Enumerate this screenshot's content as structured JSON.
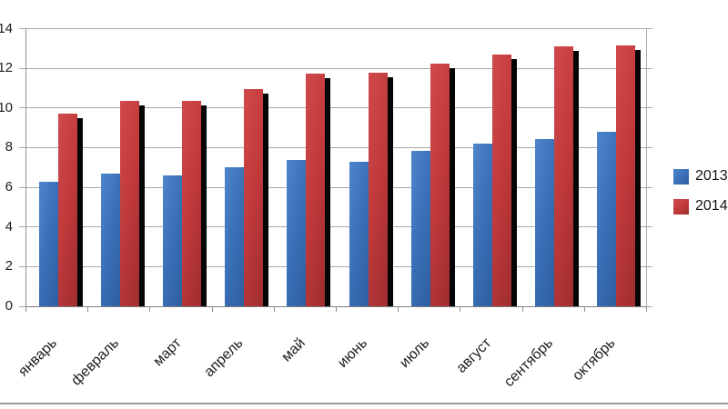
{
  "chart_data": {
    "type": "bar",
    "title": "",
    "xlabel": "",
    "ylabel": "",
    "categories": [
      "январь",
      "февраль",
      "март",
      "апрель",
      "май",
      "июнь",
      "июль",
      "август",
      "сентябрь",
      "октябрь"
    ],
    "series": [
      {
        "name": "2013",
        "color": "#3a6fb7",
        "gradient": [
          "#4d85cb",
          "#3a6fb7",
          "#2e5e9e"
        ],
        "values": [
          6.3,
          6.7,
          6.6,
          7.0,
          7.4,
          7.3,
          7.85,
          8.2,
          8.45,
          8.8
        ]
      },
      {
        "name": "2014",
        "color": "#c0393b",
        "gradient": [
          "#d0494b",
          "#c0393b",
          "#9e2d2f"
        ],
        "values": [
          9.7,
          10.35,
          10.35,
          10.95,
          11.75,
          11.8,
          12.25,
          12.7,
          13.1,
          13.15
        ]
      }
    ],
    "ylim": [
      0,
      14
    ],
    "ytick_step": 2,
    "yticks": [
      "0",
      "2",
      "4",
      "6",
      "8",
      "10",
      "12",
      "14"
    ],
    "grid": true,
    "legend_position": "right",
    "bar_shadow": true,
    "shadow_color": "#050505",
    "grid_color": "#a8a8a8",
    "axis_color": "#7f7f7f",
    "text_color": "#1c1c1c",
    "x_label_rotation_deg": -45
  }
}
